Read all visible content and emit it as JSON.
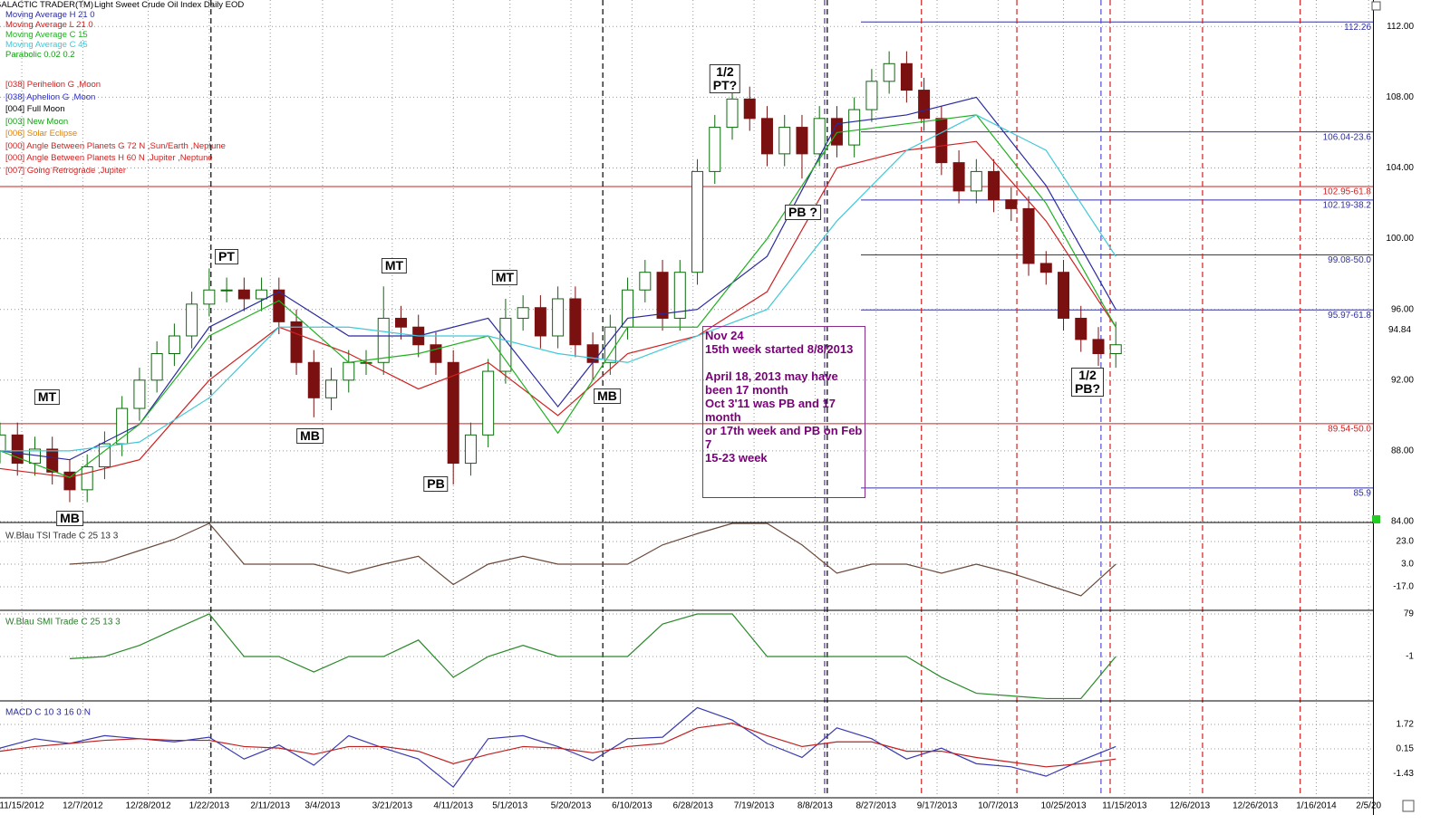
{
  "chart_data": [
    {
      "type": "candlestick",
      "app": "GALACTIC TRADER(TM)",
      "title": "Light Sweet Crude Oil Index Daily EOD",
      "x": [
        0,
        4,
        8,
        12,
        16,
        20,
        24,
        28,
        32,
        36,
        40,
        44,
        48,
        52,
        56,
        60,
        64,
        68,
        72,
        76,
        80,
        84,
        88,
        92,
        96,
        100,
        104,
        108,
        112,
        116,
        120,
        124,
        128,
        132,
        136,
        140,
        144,
        148,
        152,
        156,
        160,
        164,
        168,
        172,
        176,
        180,
        184,
        188,
        192,
        196,
        200,
        204,
        208,
        212,
        216,
        220,
        224,
        228,
        232,
        236,
        240,
        244,
        248,
        252,
        256
      ],
      "open": [
        88.0,
        88.9,
        87.3,
        88.1,
        86.8,
        85.8,
        87.1,
        88.4,
        90.4,
        92.0,
        93.5,
        94.5,
        96.3,
        97.1,
        97.1,
        96.6,
        97.1,
        95.3,
        93.0,
        91.0,
        92.0,
        93.0,
        93.0,
        95.5,
        95.0,
        94.0,
        93.0,
        87.3,
        88.9,
        92.5,
        95.5,
        96.1,
        94.5,
        96.6,
        94.0,
        93.0,
        95.0,
        97.1,
        98.1,
        95.5,
        98.1,
        103.8,
        106.3,
        107.9,
        106.8,
        104.8,
        106.3,
        104.8,
        106.8,
        105.3,
        107.3,
        108.9,
        109.9,
        108.4,
        106.8,
        104.3,
        102.7,
        103.8,
        102.2,
        101.7,
        98.6,
        98.1,
        95.5,
        94.3,
        93.5
      ],
      "high": [
        89.6,
        89.6,
        88.8,
        88.8,
        87.5,
        87.8,
        89.1,
        91.1,
        92.7,
        94.2,
        95.2,
        97.0,
        98.3,
        97.8,
        97.8,
        97.8,
        97.8,
        96.0,
        93.7,
        92.7,
        93.7,
        93.7,
        97.3,
        96.2,
        95.7,
        94.7,
        93.7,
        89.6,
        93.2,
        96.6,
        96.8,
        96.8,
        97.3,
        97.3,
        94.7,
        95.7,
        97.8,
        98.8,
        98.8,
        98.8,
        104.5,
        107.0,
        108.6,
        108.6,
        107.5,
        107.0,
        107.0,
        107.5,
        107.5,
        108.0,
        109.6,
        110.6,
        110.6,
        109.1,
        107.5,
        105.0,
        104.5,
        104.5,
        102.9,
        102.4,
        99.3,
        98.8,
        96.2,
        95.0,
        95.3
      ],
      "low": [
        87.3,
        86.6,
        86.6,
        86.1,
        85.1,
        85.1,
        86.4,
        87.7,
        89.7,
        91.3,
        92.8,
        93.8,
        95.6,
        96.4,
        95.9,
        95.9,
        94.6,
        92.3,
        89.9,
        90.3,
        91.3,
        92.3,
        92.3,
        94.3,
        93.3,
        92.3,
        86.1,
        86.6,
        88.2,
        91.8,
        94.8,
        93.8,
        93.8,
        93.3,
        92.0,
        92.3,
        94.3,
        96.4,
        94.8,
        94.8,
        97.4,
        103.1,
        105.6,
        106.1,
        104.1,
        104.1,
        103.4,
        104.1,
        104.6,
        104.6,
        106.6,
        108.2,
        107.7,
        106.1,
        103.6,
        102.0,
        102.0,
        101.5,
        101.0,
        97.9,
        97.4,
        94.8,
        93.6,
        92.8,
        92.7
      ],
      "close": [
        88.9,
        87.3,
        88.1,
        86.8,
        85.8,
        87.1,
        88.4,
        90.4,
        92.0,
        93.5,
        94.5,
        96.3,
        97.1,
        97.1,
        96.6,
        97.1,
        95.3,
        93.0,
        91.0,
        92.0,
        93.0,
        93.0,
        95.5,
        95.0,
        94.0,
        93.0,
        87.3,
        88.9,
        92.5,
        95.5,
        96.1,
        94.5,
        96.6,
        94.0,
        93.0,
        95.0,
        97.1,
        98.1,
        95.5,
        98.1,
        103.8,
        106.3,
        107.9,
        106.8,
        104.8,
        106.3,
        104.8,
        106.8,
        105.3,
        107.3,
        108.9,
        109.9,
        108.4,
        106.8,
        104.3,
        102.7,
        103.8,
        102.2,
        101.7,
        98.6,
        98.1,
        95.5,
        94.3,
        93.5,
        94.0
      ],
      "up_color": "#0b6b0b",
      "down_color": "#7a1010",
      "series": [
        {
          "name": "Moving Average H 21 0",
          "color": "#2a2aa0",
          "x": [
            0,
            16,
            32,
            48,
            64,
            80,
            96,
            112,
            128,
            144,
            160,
            176,
            192,
            208,
            224,
            240,
            256
          ],
          "values": [
            88.0,
            87.5,
            89.5,
            95.0,
            97.0,
            94.5,
            94.5,
            95.5,
            90.5,
            95.5,
            96.0,
            99.0,
            106.5,
            107.0,
            108.0,
            103.0,
            96.0
          ]
        },
        {
          "name": "Moving Average L 21 0",
          "color": "#d02020",
          "x": [
            0,
            16,
            32,
            48,
            64,
            80,
            96,
            112,
            128,
            144,
            160,
            176,
            192,
            208,
            224,
            240,
            256
          ],
          "values": [
            87.0,
            86.5,
            87.5,
            92.0,
            95.0,
            93.5,
            91.5,
            93.0,
            90.0,
            93.5,
            94.5,
            97.0,
            104.0,
            105.0,
            105.5,
            101.0,
            95.0
          ]
        },
        {
          "name": "Moving Average C 15",
          "color": "#20b020",
          "x": [
            0,
            16,
            32,
            48,
            64,
            80,
            96,
            112,
            128,
            144,
            160,
            176,
            192,
            208,
            224,
            240,
            256
          ],
          "values": [
            88.0,
            86.5,
            89.5,
            94.5,
            96.5,
            93.0,
            93.5,
            94.5,
            89.0,
            95.0,
            95.0,
            100.0,
            106.0,
            106.5,
            107.0,
            102.0,
            95.0
          ]
        },
        {
          "name": "Moving Average C 45",
          "color": "#40c8d8",
          "x": [
            0,
            16,
            32,
            48,
            64,
            80,
            96,
            112,
            128,
            144,
            160,
            176,
            192,
            208,
            224,
            240,
            256
          ],
          "values": [
            88.0,
            88.0,
            88.5,
            91.0,
            95.0,
            95.0,
            94.5,
            94.5,
            93.5,
            93.0,
            94.5,
            96.0,
            101.0,
            105.0,
            107.0,
            105.0,
            99.0
          ]
        }
      ],
      "extra_legend": [
        {
          "name": "Parabolic 0.02 0.2",
          "color": "#10a010"
        }
      ],
      "events": [
        {
          "name": "[038] Perihelion G ,Moon",
          "color": "#d02020"
        },
        {
          "name": "[038] Aphelion G ,Moon",
          "color": "#2a2ad0"
        },
        {
          "name": "[004] Full Moon",
          "color": "#000000"
        },
        {
          "name": "[003] New Moon",
          "color": "#10a010"
        },
        {
          "name": "[006] Solar Eclipse",
          "color": "#e08000"
        },
        {
          "name": "[000] Angle Between Planets G 72 N ,Sun/Earth ,Neptune",
          "color": "#d02020"
        },
        {
          "name": "[000] Angle Between Planets H 60 N ,Jupiter ,Neptune",
          "color": "#d02020"
        },
        {
          "name": "[007] Going Retrograde ,Jupiter",
          "color": "#d02020"
        }
      ],
      "xlim": [
        0,
        315
      ],
      "ylim": [
        84,
        113.5
      ],
      "yticks": [
        {
          "value": 84,
          "label": "84.00"
        },
        {
          "value": 88,
          "label": "88.00"
        },
        {
          "value": 92,
          "label": "92.00"
        },
        {
          "value": 96,
          "label": "96.00"
        },
        {
          "value": 100,
          "label": "100.00"
        },
        {
          "value": 104,
          "label": "104.00"
        },
        {
          "value": 108,
          "label": "108.00"
        },
        {
          "value": 112,
          "label": "112.00"
        }
      ],
      "last_price": 94.84,
      "levels": [
        {
          "value": 112.26,
          "label": "112.26",
          "color": "#3030a0"
        },
        {
          "value": 106.04,
          "label": "106.04-23.6",
          "color": "#3030a0"
        },
        {
          "value": 102.95,
          "label": "102.95-61.8",
          "color": "#d02020"
        },
        {
          "value": 102.19,
          "label": "102.19-38.2",
          "color": "#3030a0"
        },
        {
          "value": 99.08,
          "label": "99.08-50.0",
          "color": "#3030a0"
        },
        {
          "value": 95.97,
          "label": "95.97-61.8",
          "color": "#3030a0"
        },
        {
          "value": 89.54,
          "label": "89.54-50.0",
          "color": "#d02020"
        },
        {
          "value": 85.9,
          "label": "85.9",
          "color": "#3030a0"
        }
      ],
      "vlines": [
        {
          "x": 48.4,
          "color": "#000000"
        },
        {
          "x": 138.3,
          "color": "#000000"
        },
        {
          "x": 189.2,
          "color": "#5030a0"
        },
        {
          "x": 189.8,
          "color": "#000000"
        },
        {
          "x": 211.4,
          "color": "#d02020"
        },
        {
          "x": 233.3,
          "color": "#d02020"
        },
        {
          "x": 252.6,
          "color": "#5050d0"
        },
        {
          "x": 254.7,
          "color": "#d02020"
        },
        {
          "x": 275.9,
          "color": "#d02020"
        },
        {
          "x": 298.3,
          "color": "#d02020"
        }
      ],
      "annotations": [
        [
          "MT"
        ],
        [
          "MB"
        ],
        [
          "PT"
        ],
        [
          "MB"
        ],
        [
          "MT"
        ],
        [
          "PB"
        ],
        [
          "MT"
        ],
        [
          "MB"
        ],
        [
          "1/2",
          "PT?"
        ],
        [
          "PB ?"
        ],
        [
          "1/2",
          "PB?"
        ]
      ],
      "note": [
        "Nov 24",
        "15th week started 8/8/2013",
        "April 18, 2013 may have been 17 month",
        "Oct 3'11 was PB and 17 month",
        "or 17th week and PB on Feb 7",
        "15-23 week"
      ]
    },
    {
      "type": "line",
      "title": "W.Blau TSI Trade C 25 13 3",
      "x": [
        0,
        8,
        16,
        24,
        32,
        40,
        48,
        56,
        64,
        72,
        80,
        88,
        96,
        104,
        112,
        120,
        128,
        136,
        144,
        152,
        160,
        168,
        176,
        184,
        192,
        200,
        208,
        216,
        224,
        232,
        240,
        248,
        256
      ],
      "series": [
        {
          "color": "#6a4a3a",
          "values": [
            null,
            null,
            3,
            5,
            15,
            25,
            39,
            3,
            3,
            3,
            -5,
            3,
            10,
            -15,
            3,
            10,
            3,
            3,
            3,
            20,
            30,
            39,
            39,
            20,
            -5,
            3,
            3,
            -5,
            3,
            -5,
            -15,
            -25,
            3
          ]
        }
      ],
      "xlim": [
        0,
        315
      ],
      "ylim": [
        -37,
        39
      ],
      "yticks": [
        {
          "value": 23,
          "label": "23.0"
        },
        {
          "value": 3,
          "label": "3.0"
        },
        {
          "value": -17,
          "label": "-17.0"
        }
      ]
    },
    {
      "type": "line",
      "title": "W.Blau SMI Trade C 25 13 3",
      "x": [
        0,
        8,
        16,
        24,
        32,
        40,
        48,
        56,
        64,
        72,
        80,
        88,
        96,
        104,
        112,
        120,
        128,
        136,
        144,
        152,
        160,
        168,
        176,
        184,
        192,
        200,
        208,
        216,
        224,
        232,
        240,
        248,
        256
      ],
      "series": [
        {
          "color": "#2a8a2a",
          "values": [
            null,
            null,
            -5,
            -1,
            20,
            50,
            79,
            -1,
            -1,
            -30,
            -1,
            -1,
            30,
            -40,
            -1,
            20,
            -1,
            -1,
            -1,
            60,
            79,
            79,
            -1,
            -1,
            -1,
            -1,
            -1,
            -40,
            -70,
            -75,
            -80,
            -80,
            -1
          ]
        }
      ],
      "xlim": [
        0,
        315
      ],
      "ylim": [
        -82.7,
        87.5
      ],
      "yticks": [
        79,
        -1
      ]
    },
    {
      "type": "line",
      "title": "MACD C 10 3 16 0 N",
      "x": [
        0,
        8,
        16,
        24,
        32,
        40,
        48,
        56,
        64,
        72,
        80,
        88,
        96,
        104,
        112,
        120,
        128,
        136,
        144,
        152,
        160,
        168,
        176,
        184,
        192,
        200,
        208,
        216,
        224,
        232,
        240,
        248,
        256
      ],
      "series": [
        {
          "color": "#3a3ab0",
          "values": [
            0.2,
            0.8,
            0.5,
            1.0,
            0.8,
            0.6,
            0.9,
            -0.5,
            0.4,
            -0.9,
            1.0,
            0.2,
            -0.5,
            -2.3,
            0.8,
            1.0,
            0.3,
            -0.6,
            0.8,
            0.9,
            2.8,
            2.0,
            0.5,
            -0.4,
            1.5,
            0.8,
            -0.5,
            0.2,
            -0.8,
            -1.0,
            -1.6,
            -0.6,
            0.3
          ]
        },
        {
          "color": "#c02020",
          "values": [
            0.0,
            0.3,
            0.5,
            0.7,
            0.8,
            0.7,
            0.7,
            0.3,
            0.2,
            -0.2,
            0.3,
            0.3,
            0.0,
            -0.8,
            -0.2,
            0.3,
            0.2,
            -0.1,
            0.3,
            0.5,
            1.5,
            1.8,
            1.0,
            0.3,
            0.6,
            0.6,
            0.0,
            0.0,
            -0.4,
            -0.7,
            -1.0,
            -0.8,
            -0.5
          ]
        }
      ],
      "xlim": [
        0,
        315
      ],
      "ylim": [
        -2.93,
        3.29
      ],
      "yticks": [
        1.72,
        0.15,
        -1.43
      ],
      "xticks": [
        {
          "value": 5,
          "label": "11/15/2012"
        },
        {
          "value": 19,
          "label": "12/7/2012"
        },
        {
          "value": 34,
          "label": "12/28/2012"
        },
        {
          "value": 48,
          "label": "1/22/2013"
        },
        {
          "value": 62,
          "label": "2/11/2013"
        },
        {
          "value": 74,
          "label": "3/4/2013"
        },
        {
          "value": 90,
          "label": "3/21/2013"
        },
        {
          "value": 104,
          "label": "4/11/2013"
        },
        {
          "value": 117,
          "label": "5/1/2013"
        },
        {
          "value": 131,
          "label": "5/20/2013"
        },
        {
          "value": 145,
          "label": "6/10/2013"
        },
        {
          "value": 159,
          "label": "6/28/2013"
        },
        {
          "value": 173,
          "label": "7/19/2013"
        },
        {
          "value": 187,
          "label": "8/8/2013"
        },
        {
          "value": 201,
          "label": "8/27/2013"
        },
        {
          "value": 215,
          "label": "9/17/2013"
        },
        {
          "value": 229,
          "label": "10/7/2013"
        },
        {
          "value": 244,
          "label": "10/25/2013"
        },
        {
          "value": 258,
          "label": "11/15/2013"
        },
        {
          "value": 273,
          "label": "12/6/2013"
        },
        {
          "value": 288,
          "label": "12/26/2013"
        },
        {
          "value": 302,
          "label": "1/16/2014"
        },
        {
          "value": 314,
          "label": "2/5/20"
        }
      ]
    }
  ]
}
